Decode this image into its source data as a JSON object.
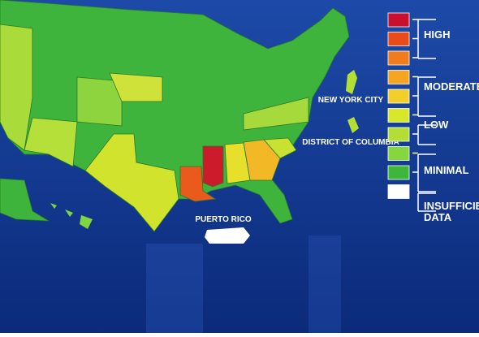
{
  "map": {
    "labels": {
      "nyc": "NEW YORK CITY",
      "dc": "DISTRICT OF COLUMBIA",
      "pr": "PUERTO RICO"
    },
    "legend": {
      "swatches": [
        "#c8102e",
        "#e94b1b",
        "#f07c1c",
        "#f5a520",
        "#f3cf2c",
        "#d8e62c",
        "#b2de36",
        "#86d63e",
        "#3eb63a",
        "#ffffff"
      ],
      "labels": [
        "HIGH",
        "MODERATE",
        "LOW",
        "MINIMAL",
        "INSUFFICIENT",
        "DATA"
      ]
    }
  }
}
